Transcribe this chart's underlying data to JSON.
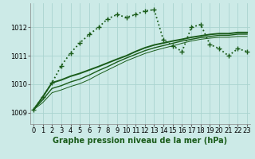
{
  "title": "Graphe pression niveau de la mer (hPa)",
  "bg_color": "#cceae7",
  "grid_color_major": "#aad4d0",
  "grid_color_minor": "#bbdeda",
  "line_color": "#1a5c1a",
  "x_ticks": [
    0,
    1,
    2,
    3,
    4,
    5,
    6,
    7,
    8,
    9,
    10,
    11,
    12,
    13,
    14,
    15,
    16,
    17,
    18,
    19,
    20,
    21,
    22,
    23
  ],
  "y_ticks": [
    1009,
    1010,
    1011,
    1012
  ],
  "ylim": [
    1008.6,
    1012.85
  ],
  "xlim": [
    -0.3,
    23.3
  ],
  "series_main": {
    "x": [
      0,
      1,
      2,
      3,
      4,
      5,
      6,
      7,
      8,
      9,
      10,
      11,
      12,
      13,
      14,
      15,
      16,
      17,
      18,
      19,
      20,
      21,
      22,
      23
    ],
    "y": [
      1009.1,
      1009.55,
      1010.05,
      1010.65,
      1011.1,
      1011.45,
      1011.75,
      1012.0,
      1012.3,
      1012.45,
      1012.35,
      1012.45,
      1012.58,
      1012.62,
      1011.55,
      1011.35,
      1011.15,
      1012.0,
      1012.1,
      1011.4,
      1011.25,
      1011.0,
      1011.25,
      1011.15
    ],
    "linewidth": 1.3,
    "marker": "+",
    "markersize": 4.5
  },
  "series_trend1": {
    "x": [
      0,
      1,
      2,
      3,
      4,
      5,
      6,
      7,
      8,
      9,
      10,
      11,
      12,
      13,
      14,
      15,
      16,
      17,
      18,
      19,
      20,
      21,
      22,
      23
    ],
    "y": [
      1009.1,
      1009.55,
      1010.05,
      1010.15,
      1010.28,
      1010.38,
      1010.5,
      1010.62,
      1010.75,
      1010.88,
      1011.0,
      1011.15,
      1011.28,
      1011.38,
      1011.45,
      1011.52,
      1011.58,
      1011.65,
      1011.7,
      1011.75,
      1011.78,
      1011.78,
      1011.82,
      1011.82
    ],
    "linewidth": 1.4
  },
  "series_trend2": {
    "x": [
      0,
      1,
      2,
      3,
      4,
      5,
      6,
      7,
      8,
      9,
      10,
      11,
      12,
      13,
      14,
      15,
      16,
      17,
      18,
      19,
      20,
      21,
      22,
      23
    ],
    "y": [
      1009.1,
      1009.45,
      1009.85,
      1009.95,
      1010.08,
      1010.18,
      1010.32,
      1010.48,
      1010.62,
      1010.78,
      1010.92,
      1011.05,
      1011.18,
      1011.28,
      1011.36,
      1011.44,
      1011.52,
      1011.58,
      1011.64,
      1011.68,
      1011.72,
      1011.72,
      1011.76,
      1011.76
    ],
    "linewidth": 1.0
  },
  "series_trend3": {
    "x": [
      0,
      1,
      2,
      3,
      4,
      5,
      6,
      7,
      8,
      9,
      10,
      11,
      12,
      13,
      14,
      15,
      16,
      17,
      18,
      19,
      20,
      21,
      22,
      23
    ],
    "y": [
      1009.1,
      1009.35,
      1009.7,
      1009.8,
      1009.92,
      1010.02,
      1010.16,
      1010.34,
      1010.5,
      1010.66,
      1010.82,
      1010.95,
      1011.08,
      1011.18,
      1011.27,
      1011.35,
      1011.44,
      1011.52,
      1011.58,
      1011.62,
      1011.65,
      1011.65,
      1011.68,
      1011.68
    ],
    "linewidth": 0.7
  },
  "tick_fontsize": 6,
  "label_fontsize": 7
}
